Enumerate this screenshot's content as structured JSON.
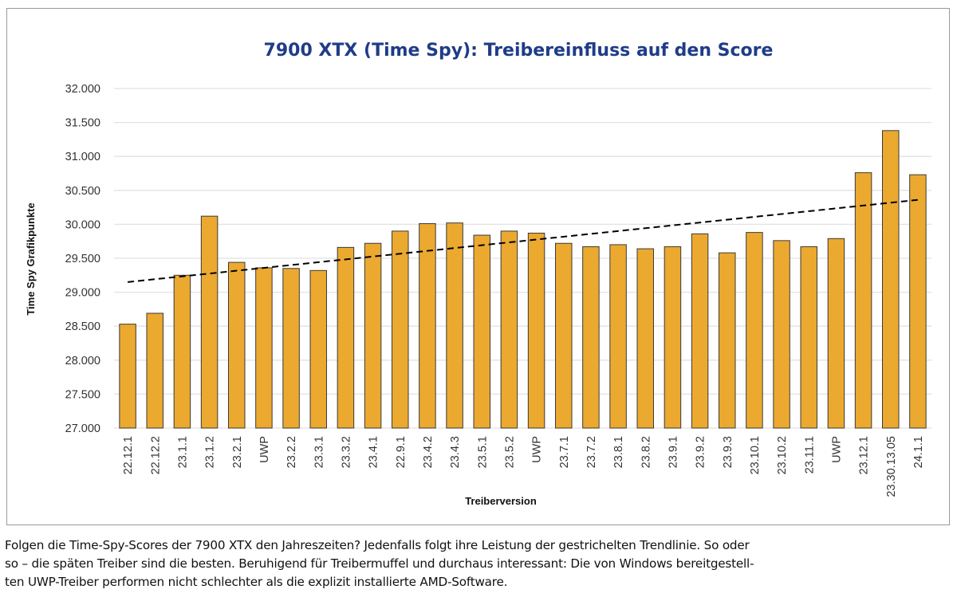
{
  "chart_data": {
    "type": "bar",
    "title": "7900 XTX (Time Spy): Treibereinfluss auf den Score",
    "xlabel": "Treiberversion",
    "ylabel": "Time Spy Grafikpunkte",
    "ylim": [
      27000,
      32000
    ],
    "yticks": [
      27000,
      27500,
      28000,
      28500,
      29000,
      29500,
      30000,
      30500,
      31000,
      31500,
      32000
    ],
    "ytick_labels": [
      "27.000",
      "27.500",
      "28.000",
      "28.500",
      "29.000",
      "29.500",
      "30.000",
      "30.500",
      "31.000",
      "31.500",
      "32.000"
    ],
    "grid": true,
    "legend": "none",
    "categories": [
      "22.12.1",
      "22.12.2",
      "23.1.1",
      "23.1.2",
      "23.2.1",
      "UWP",
      "23.2.2",
      "23.3.1",
      "23.3.2",
      "23.4.1",
      "22.9.1",
      "23.4.2",
      "23.4.3",
      "23.5.1",
      "23.5.2",
      "UWP",
      "23.7.1",
      "23.7.2",
      "23.8.1",
      "23.8.2",
      "23.9.1",
      "23.9.2",
      "23.9.3",
      "23.10.1",
      "23.10.2",
      "23.11.1",
      "UWP",
      "23.12.1",
      "23.30.13.05",
      "24.1.1"
    ],
    "series": [
      {
        "name": "Time Spy Grafikpunkte",
        "color": "#eba92f",
        "values": [
          28530,
          28690,
          29250,
          30120,
          29440,
          29360,
          29350,
          29320,
          29660,
          29720,
          29900,
          30010,
          30020,
          29840,
          29900,
          29870,
          29720,
          29670,
          29700,
          29640,
          29670,
          29860,
          29580,
          29880,
          29760,
          29670,
          29790,
          30760,
          31380,
          30730
        ]
      }
    ],
    "trendline": {
      "type": "linear",
      "style": "dashed",
      "color": "#000000",
      "start": 29150,
      "end": 30360
    }
  },
  "caption": "Folgen die Time-Spy-Scores der 7900 XTX den Jahreszeiten? Jedenfalls folgt ihre Leistung der gestrichelten Trendlinie. So oder so – die späten Treiber sind die besten. Beruhigend für Treibermuffel und durchaus interessant: Die von Windows bereitgestell-ten UWP-Treiber performen nicht schlechter als die explizit installierte AMD-Software.",
  "caption_lines": [
    "Folgen die Time-Spy-Scores der 7900 XTX den Jahreszeiten? Jedenfalls folgt ihre Leistung der gestrichelten Trendlinie. So oder",
    "so – die späten Treiber sind die besten. Beruhigend für Treibermuffel und durchaus interessant: Die von Windows bereitgestell-",
    "ten UWP-Treiber performen nicht schlechter als die explizit installierte AMD-Software."
  ]
}
